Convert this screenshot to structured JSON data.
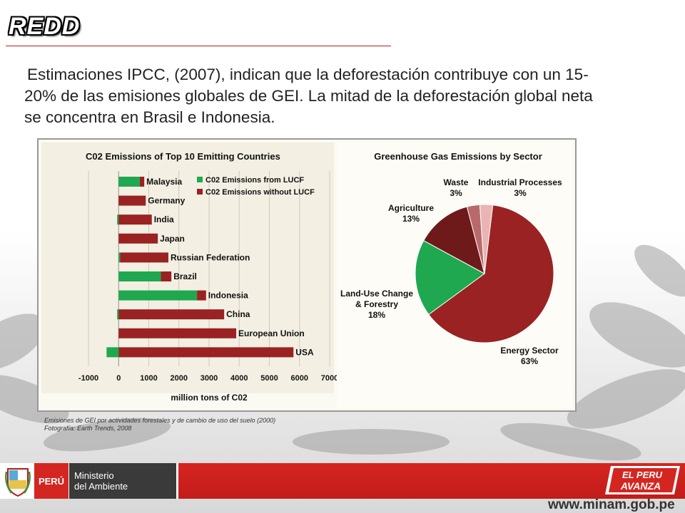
{
  "page": {
    "title": "REDD",
    "intro": "Estimaciones IPCC, (2007), indican que la deforestación contribuye con un 15-20% de las emisiones globales de GEI. La mitad de la deforestación global neta se concentra en Brasil e Indonesia.",
    "caption_line1": "Emisiones de GEI por actividades forestales y de cambio de uso del suelo (2000)",
    "caption_line2": "Fotografía: Earth Trends, 2008"
  },
  "footer": {
    "peru_label": "PERÚ",
    "ministerio_line1": "Ministerio",
    "ministerio_line2": "del Ambiente",
    "logo_line1": "EL PERU",
    "logo_line2": "AVANZA",
    "url": "www.minam.gob.pe"
  },
  "colors": {
    "accent_red": "#b5201c",
    "lucf_green": "#1fa84f",
    "non_lucf_red": "#9a2222"
  },
  "chart_data": [
    {
      "type": "bar",
      "orientation": "horizontal",
      "stacked": true,
      "title": "C02 Emissions of Top 10 Emitting Countries",
      "xlabel": "million tons of C02",
      "xlim": [
        -1000,
        7000
      ],
      "xticks": [
        "-1000",
        "0",
        "1000",
        "2000",
        "3000",
        "4000",
        "5000",
        "6000",
        "7000"
      ],
      "grid": true,
      "legend": "top-right",
      "categories": [
        "Malaysia",
        "Germany",
        "India",
        "Japan",
        "Russian Federation",
        "Brazil",
        "Indonesia",
        "China",
        "European Union",
        "USA"
      ],
      "series": [
        {
          "name": "C02 Emissions from LUCF",
          "color": "#1fa84f",
          "values": [
            700,
            0,
            -50,
            0,
            50,
            1400,
            2600,
            -50,
            0,
            -400
          ]
        },
        {
          "name": "C02 Emissions without LUCF",
          "color": "#9a2222",
          "values": [
            150,
            900,
            1100,
            1300,
            1600,
            350,
            300,
            3500,
            3900,
            5800
          ]
        }
      ]
    },
    {
      "type": "pie",
      "title": "Greenhouse Gas Emissions by Sector",
      "categories": [
        "Energy Sector",
        "Land-Use Change & Forestry",
        "Agriculture",
        "Waste",
        "Industrial Processes"
      ],
      "labels": [
        "Energy Sector\n63%",
        "Land-Use Change\n& Forestry\n18%",
        "Agriculture\n13%",
        "Waste\n3%",
        "Industrial Processes\n3%"
      ],
      "values": [
        63,
        18,
        13,
        3,
        3
      ],
      "colors": [
        "#9a2222",
        "#1fa84f",
        "#6e1a1a",
        "#b86a6a",
        "#e8b4b4"
      ]
    }
  ]
}
